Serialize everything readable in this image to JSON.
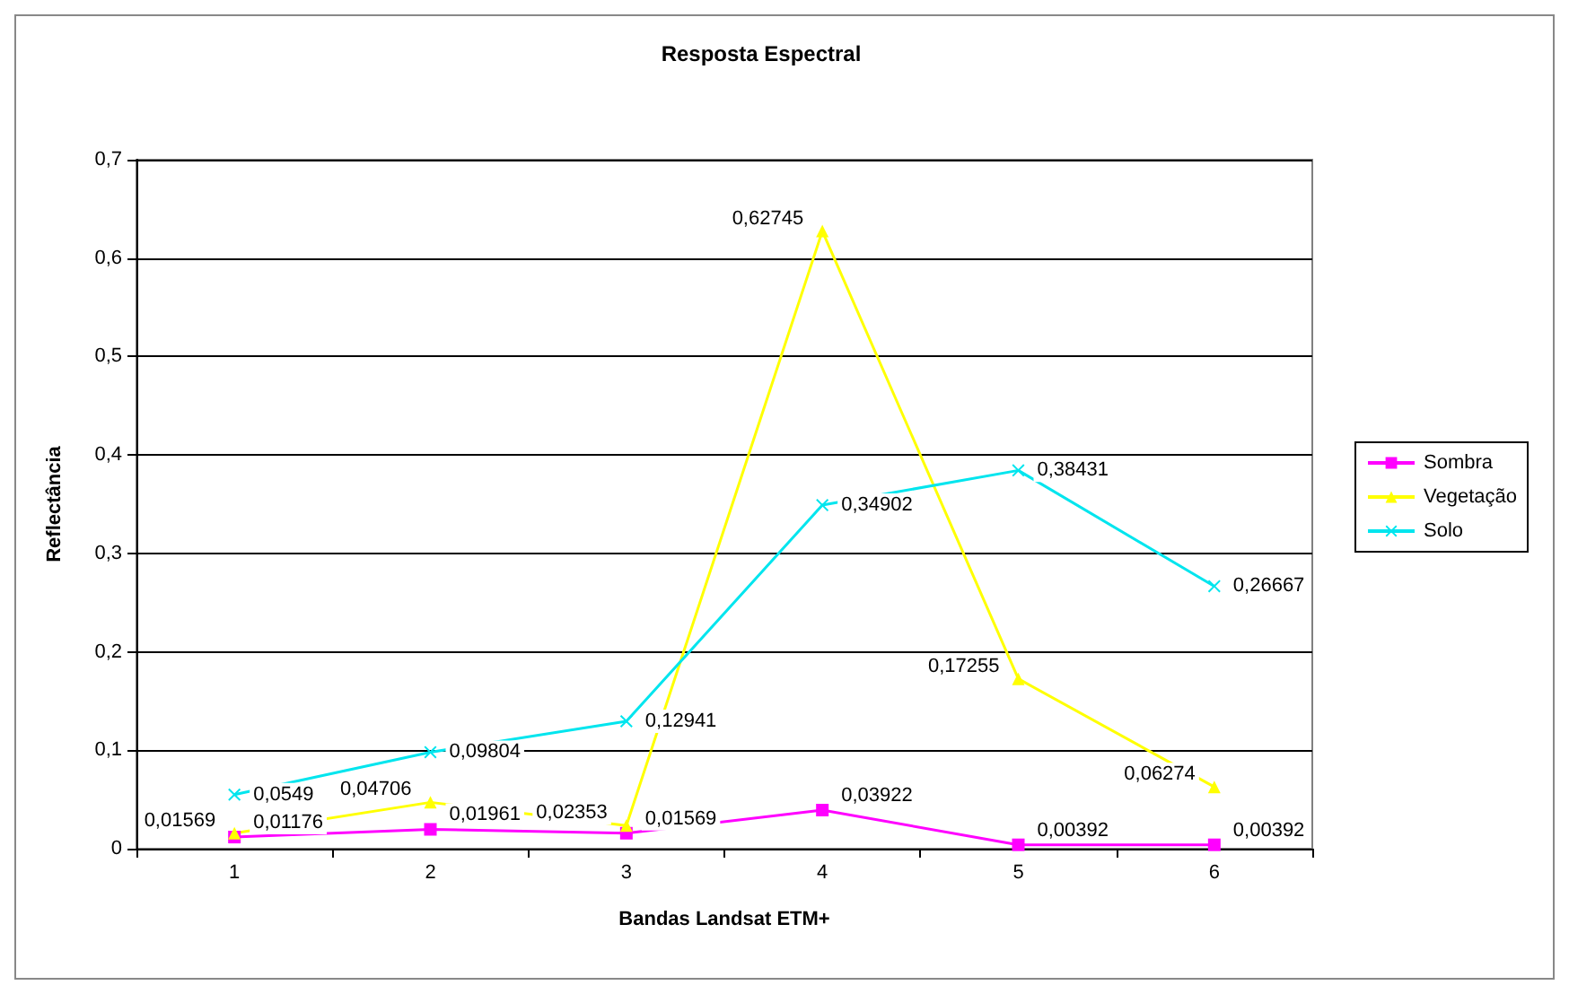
{
  "chart_data": {
    "type": "line",
    "title": "Resposta Espectral",
    "xlabel": "Bandas Landsat ETM+",
    "ylabel": "Reflectância",
    "categories": [
      "1",
      "2",
      "3",
      "4",
      "5",
      "6"
    ],
    "series": [
      {
        "name": "Sombra",
        "color": "#ff00ff",
        "marker": "square",
        "values": [
          0.01176,
          0.01961,
          0.01569,
          0.03922,
          0.00392,
          0.00392
        ],
        "value_labels": [
          "0,01176",
          "0,01961",
          "0,01569",
          "0,03922",
          "0,00392",
          "0,00392"
        ]
      },
      {
        "name": "Vegetação",
        "color": "#ffff00",
        "marker": "triangle",
        "values": [
          0.01569,
          0.04706,
          0.02353,
          0.62745,
          0.17255,
          0.06274
        ],
        "value_labels": [
          "0,01569",
          "0,04706",
          "0,02353",
          "0,62745",
          "0,17255",
          "0,06274"
        ]
      },
      {
        "name": "Solo",
        "color": "#00e5ee",
        "marker": "cross",
        "values": [
          0.0549,
          0.09804,
          0.12941,
          0.34902,
          0.38431,
          0.26667
        ],
        "value_labels": [
          "0,0549",
          "0,09804",
          "0,12941",
          "0,34902",
          "0,38431",
          "0,26667"
        ]
      }
    ],
    "ylim": [
      0,
      0.7
    ],
    "yticks": [
      0,
      {
        "value": 0.1,
        "label": "0,1"
      },
      {
        "value": 0.2,
        "label": "0,2"
      },
      {
        "value": 0.3,
        "label": "0,3"
      },
      {
        "value": 0.4,
        "label": "0,4"
      },
      {
        "value": 0.5,
        "label": "0,5"
      },
      {
        "value": 0.6,
        "label": "0,6"
      },
      {
        "value": 0.7,
        "label": "0,7"
      }
    ],
    "grid": "y",
    "legend": "right"
  }
}
